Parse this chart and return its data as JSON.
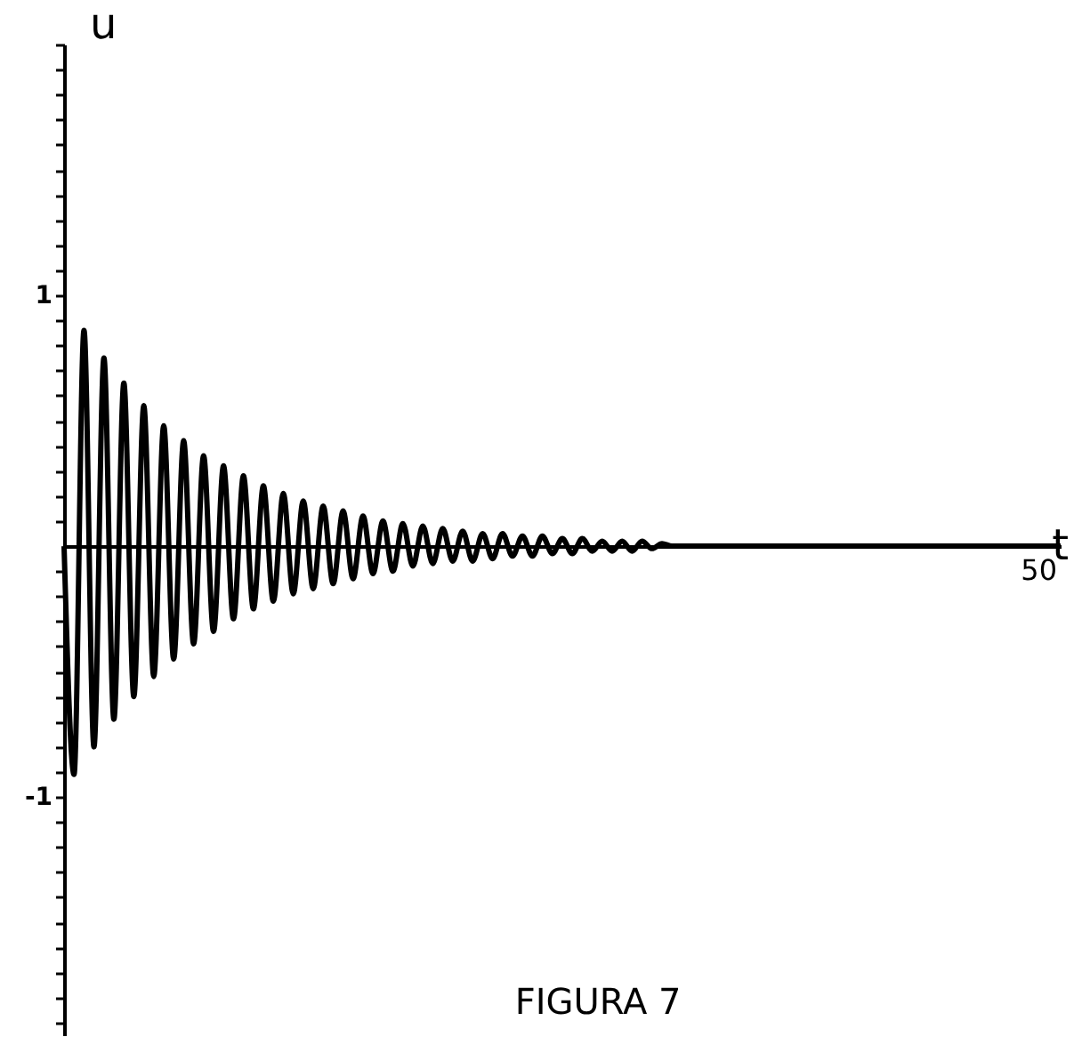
{
  "chart_data": {
    "type": "line",
    "xlabel": "t",
    "ylabel": "u",
    "annotations": [
      "50",
      "FIGURA 7"
    ],
    "categories": [
      null,
      null,
      null,
      null,
      null,
      null,
      null,
      null,
      null,
      null,
      null,
      null,
      null,
      null,
      null,
      null,
      null,
      null,
      null,
      null,
      null,
      null,
      null,
      null,
      null,
      null,
      null,
      null,
      null,
      null,
      null,
      null,
      null,
      null,
      null,
      null,
      null,
      null,
      null,
      null,
      null,
      null,
      null,
      null,
      null,
      null,
      null,
      null,
      null,
      null,
      null,
      null,
      null,
      null,
      null,
      null,
      null,
      null,
      null,
      null,
      null,
      null,
      null,
      null,
      null,
      null,
      null,
      null,
      null,
      null,
      null,
      null,
      null,
      null,
      null,
      null,
      null,
      null,
      null,
      null,
      null,
      null,
      null,
      null,
      null,
      null,
      null,
      null,
      null,
      null,
      null,
      null,
      null,
      null,
      null,
      null,
      null,
      null,
      null,
      null,
      null
    ],
    "series": [
      {
        "color": "#000000",
        "values": [
          0,
          -0.91,
          0.86,
          -0.8,
          0.75,
          -0.69,
          0.65,
          -0.6,
          0.56,
          -0.52,
          0.48,
          -0.45,
          0.42,
          -0.39,
          0.36,
          -0.34,
          0.32,
          -0.29,
          0.28,
          -0.25,
          0.24,
          -0.22,
          0.21,
          -0.19,
          0.18,
          -0.17,
          0.16,
          -0.15,
          0.14,
          -0.13,
          0.12,
          -0.11,
          0.1,
          -0.1,
          0.09,
          -0.08,
          0.08,
          -0.07,
          0.07,
          -0.06,
          0.06,
          -0.06,
          0.05,
          -0.05,
          0.05,
          -0.04,
          0.04,
          -0.04,
          0.04,
          -0.03,
          0.03,
          -0.03,
          0.03,
          -0.02,
          0.02,
          -0.02,
          0.02,
          -0.02,
          0.02,
          -0.01,
          0.01,
          0,
          0,
          0,
          0,
          0,
          0,
          0,
          0,
          0,
          0,
          0,
          0,
          0,
          0,
          0,
          0,
          0,
          0,
          0,
          0,
          0,
          0,
          0,
          0,
          0,
          0,
          0,
          0,
          0,
          0,
          0,
          0,
          0,
          0,
          0,
          0,
          0,
          0,
          0,
          0
        ]
      }
    ],
    "ylim": [
      -1.95,
      2
    ],
    "yticks": [
      {
        "value": -1.9,
        "label": null
      },
      {
        "value": -1.8,
        "label": null
      },
      {
        "value": -1.7,
        "label": null
      },
      {
        "value": -1.6,
        "label": null
      },
      {
        "value": -1.5,
        "label": null
      },
      {
        "value": -1.4,
        "label": null
      },
      {
        "value": -1.3,
        "label": null
      },
      {
        "value": -1.2,
        "label": null
      },
      {
        "value": -1.1,
        "label": null
      },
      -1,
      {
        "value": -0.9,
        "label": null
      },
      {
        "value": -0.8,
        "label": null
      },
      {
        "value": -0.7,
        "label": null
      },
      {
        "value": -0.6,
        "label": null
      },
      {
        "value": -0.5,
        "label": null
      },
      {
        "value": -0.4,
        "label": null
      },
      {
        "value": -0.3,
        "label": null
      },
      {
        "value": -0.2,
        "label": null
      },
      {
        "value": -0.1,
        "label": null
      },
      {
        "value": 0.1,
        "label": null
      },
      {
        "value": 0.2,
        "label": null
      },
      {
        "value": 0.3,
        "label": null
      },
      {
        "value": 0.4,
        "label": null
      },
      {
        "value": 0.5,
        "label": null
      },
      {
        "value": 0.6,
        "label": null
      },
      {
        "value": 0.7,
        "label": null
      },
      {
        "value": 0.8,
        "label": null
      },
      {
        "value": 0.9,
        "label": null
      },
      1,
      {
        "value": 1.1,
        "label": null
      },
      {
        "value": 1.2,
        "label": null
      },
      {
        "value": 1.3,
        "label": null
      },
      {
        "value": 1.4,
        "label": null
      },
      {
        "value": 1.5,
        "label": null
      },
      {
        "value": 1.6,
        "label": null
      },
      {
        "value": 1.7,
        "label": null
      },
      {
        "value": 1.8,
        "label": null
      },
      {
        "value": 1.9,
        "label": null
      },
      {
        "value": 2,
        "label": null
      }
    ],
    "grid": false,
    "line_style": "solid",
    "marker": "none"
  }
}
